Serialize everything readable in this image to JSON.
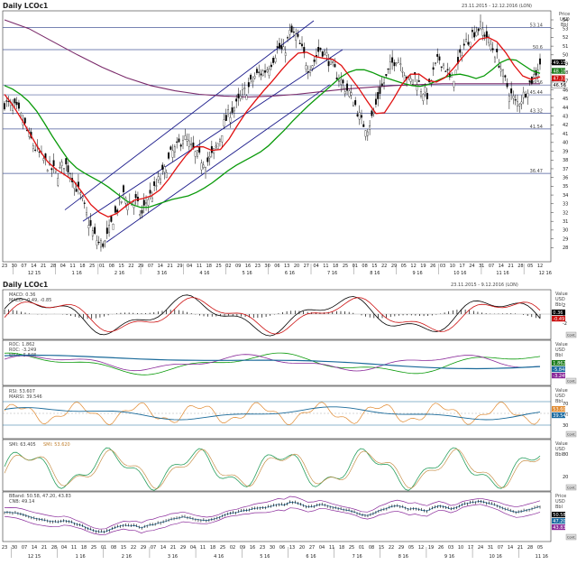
{
  "main_chart": {
    "title": "Daily LCOc1",
    "date_range": "23.11.2015 - 12.12.2016 (LON)",
    "axis_caption": [
      "Price",
      "USD",
      "Bbl"
    ],
    "chart_data": {
      "type": "candlestick",
      "ylim": [
        27,
        54
      ],
      "yticks": [
        28,
        29,
        30,
        31,
        32,
        33,
        34,
        35,
        36,
        37,
        38,
        39,
        40,
        41,
        42,
        43,
        44,
        45,
        46,
        47,
        48,
        49,
        50,
        51,
        52,
        53,
        54
      ],
      "horizontal_levels": [
        {
          "value": 53.14,
          "label": "53.14"
        },
        {
          "value": 50.6,
          "label": "50.6"
        },
        {
          "value": 46.56,
          "label": "46.56"
        },
        {
          "value": 45.44,
          "label": "45.44"
        },
        {
          "value": 43.32,
          "label": "43.32"
        },
        {
          "value": 41.54,
          "label": "41.54"
        },
        {
          "value": 36.47,
          "label": "36.47"
        }
      ],
      "price_badges": [
        {
          "label": "49.15",
          "color": "#000000"
        },
        {
          "label": "48.18",
          "color": "#1a7a1a"
        },
        {
          "label": "47.33",
          "color": "#cc1010"
        },
        {
          "label": "46.56",
          "color": "#ffffff"
        }
      ],
      "close_approx": [
        44.5,
        44.2,
        43.8,
        42.6,
        41.0,
        39.5,
        38.6,
        37.6,
        36.9,
        36.5,
        37.6,
        36.8,
        35.0,
        33.5,
        31.2,
        29.4,
        28.4,
        28.6,
        30.8,
        32.5,
        33.9,
        33.2,
        33.4,
        31.6,
        33.6,
        34.2,
        35.8,
        36.8,
        38.7,
        39.4,
        40.6,
        39.8,
        38.7,
        38.1,
        37.7,
        38.6,
        40.1,
        42.3,
        43.6,
        44.2,
        45.5,
        46.2,
        47.5,
        47.9,
        48.3,
        49.4,
        50.9,
        50.2,
        52.6,
        52.1,
        50.5,
        48.6,
        49.2,
        50.8,
        50.1,
        48.7,
        47.6,
        46.5,
        45.6,
        44.2,
        42.3,
        41.7,
        43.2,
        45.8,
        47.1,
        48.9,
        49.8,
        48.6,
        46.8,
        47.6,
        46.2,
        45.4,
        47.8,
        49.6,
        48.8,
        46.9,
        48.2,
        50.8,
        51.9,
        52.7,
        53.2,
        52.1,
        50.8,
        49.4,
        47.2,
        45.6,
        44.4,
        45.1,
        46.4,
        47.6,
        49.1
      ],
      "sma_green": [
        46.5,
        46.1,
        45.5,
        44.7,
        43.6,
        42.2,
        40.7,
        39.3,
        38.0,
        37.1,
        36.5,
        36.0,
        35.5,
        34.9,
        34.2,
        33.5,
        32.9,
        32.6,
        32.6,
        32.9,
        33.2,
        33.5,
        33.7,
        33.9,
        34.3,
        34.8,
        35.4,
        36.1,
        36.8,
        37.4,
        37.9,
        38.4,
        38.9,
        39.6,
        40.5,
        41.4,
        42.4,
        43.3,
        44.2,
        45.0,
        45.8,
        46.6,
        47.4,
        48.0,
        48.3,
        48.3,
        48.0,
        47.6,
        47.3,
        47.0,
        46.7,
        46.5,
        46.4,
        46.6,
        47.0,
        47.4,
        47.7,
        47.8,
        47.6,
        47.3,
        47.6,
        48.3,
        49.1,
        49.5,
        49.4,
        48.8,
        48.2,
        47.9
      ],
      "sma_red": [
        45.5,
        44.2,
        42.6,
        40.9,
        39.2,
        37.8,
        36.9,
        36.3,
        35.6,
        34.3,
        32.9,
        32.0,
        31.5,
        31.9,
        32.7,
        33.4,
        33.6,
        33.9,
        34.6,
        35.8,
        37.2,
        38.5,
        39.5,
        39.5,
        39.1,
        39.2,
        40.4,
        42.0,
        43.5,
        44.7,
        45.9,
        47.0,
        48.2,
        49.3,
        50.2,
        50.3,
        49.8,
        49.6,
        49.5,
        48.8,
        47.5,
        46.2,
        44.7,
        43.3,
        43.4,
        44.9,
        46.6,
        47.8,
        47.8,
        47.1,
        46.9,
        47.4,
        48.5,
        49.7,
        50.8,
        51.8,
        52.0,
        51.5,
        50.3,
        48.8,
        47.6,
        47.2,
        47.5
      ]
    },
    "xaxis_days": [
      "23",
      "30",
      "07",
      "14",
      "21",
      "28",
      "04",
      "11",
      "18",
      "25",
      "01",
      "08",
      "15",
      "22",
      "29",
      "07",
      "14",
      "21",
      "29",
      "04",
      "11",
      "18",
      "25",
      "02",
      "09",
      "16",
      "23",
      "30",
      "06",
      "13",
      "20",
      "27",
      "04",
      "11",
      "18",
      "25",
      "01",
      "08",
      "15",
      "22",
      "29",
      "05",
      "12",
      "19",
      "26",
      "03",
      "10",
      "17",
      "24",
      "31",
      "07",
      "14",
      "21",
      "28",
      "05",
      "12"
    ],
    "xaxis_months": [
      "12 15",
      "1 16",
      "2 16",
      "3 16",
      "4 16",
      "5 16",
      "6 16",
      "7 16",
      "8 16",
      "9 16",
      "10 16",
      "11 16",
      "12 16"
    ]
  },
  "macd_panel": {
    "title": "Daily LCOc1",
    "date_range": "23.11.2015 - 9.12.2016 (LON)",
    "legend": [
      "MACD: 0.36",
      "MACD: -0.49, -0.85"
    ],
    "axis_caption": [
      "Value",
      "USD",
      "Bbl"
    ],
    "yticks": [
      "2",
      "0",
      "-2"
    ],
    "badges": [
      {
        "label": "0.36",
        "color": "#000000"
      },
      {
        "label": "-0.49",
        "color": "#cc1010"
      }
    ],
    "button": "Cont."
  },
  "roc_panel": {
    "legend": [
      "ROC: 1.862",
      "ROC: -3.249",
      "EMA: -5.848"
    ],
    "axis_caption": [
      "Value",
      "USD",
      "Bbl"
    ],
    "badges": [
      {
        "label": "1.862",
        "color": "#1a7a1a"
      },
      {
        "label": "-5.848",
        "color": "#1a6aa0"
      },
      {
        "label": "-3.249",
        "color": "#8a2a9a"
      }
    ],
    "button": "Cont."
  },
  "rsi_panel": {
    "legend": [
      "RSI: 53.607",
      "MARSI: 39.546"
    ],
    "axis_caption": [
      "Value",
      "USD",
      "Bbl"
    ],
    "yticks": [
      "70",
      "50",
      "30"
    ],
    "badges": [
      {
        "label": "53.607",
        "color": "#e08a30"
      },
      {
        "label": "39.546",
        "color": "#1a6aa0"
      }
    ],
    "button": "Cont."
  },
  "sto_panel": {
    "legend": [
      "SMI: 63.405",
      "SMI: 53.620"
    ],
    "axis_caption": [
      "Value",
      "USD",
      "Bbl"
    ],
    "yticks": [
      "80",
      "20"
    ],
    "button": "Cont."
  },
  "bb_panel": {
    "legend": [
      "BBand: 50.58, 47.20, 43.83",
      "CNB: 49.14"
    ],
    "axis_caption": [
      "Price",
      "USD",
      "Bbl"
    ],
    "badges": [
      {
        "label": "50.58",
        "color": "#000000"
      },
      {
        "label": "47.20",
        "color": "#1a6aa0"
      },
      {
        "label": "43.83",
        "color": "#8a2a9a"
      }
    ],
    "button": "Cont.",
    "xaxis_days": [
      "23",
      "30",
      "07",
      "14",
      "21",
      "28",
      "04",
      "11",
      "18",
      "25",
      "01",
      "08",
      "15",
      "22",
      "29",
      "07",
      "14",
      "21",
      "29",
      "04",
      "11",
      "18",
      "25",
      "02",
      "09",
      "16",
      "23",
      "30",
      "06",
      "13",
      "20",
      "27",
      "04",
      "11",
      "18",
      "25",
      "01",
      "08",
      "15",
      "22",
      "29",
      "05",
      "12",
      "19",
      "26",
      "03",
      "10",
      "17",
      "24",
      "31",
      "07",
      "14",
      "21",
      "28",
      "05"
    ],
    "xaxis_months": [
      "12 15",
      "1 16",
      "2 16",
      "3 16",
      "4 16",
      "5 16",
      "6 16",
      "7 16",
      "8 16",
      "9 16",
      "10 16",
      "11 16"
    ]
  }
}
